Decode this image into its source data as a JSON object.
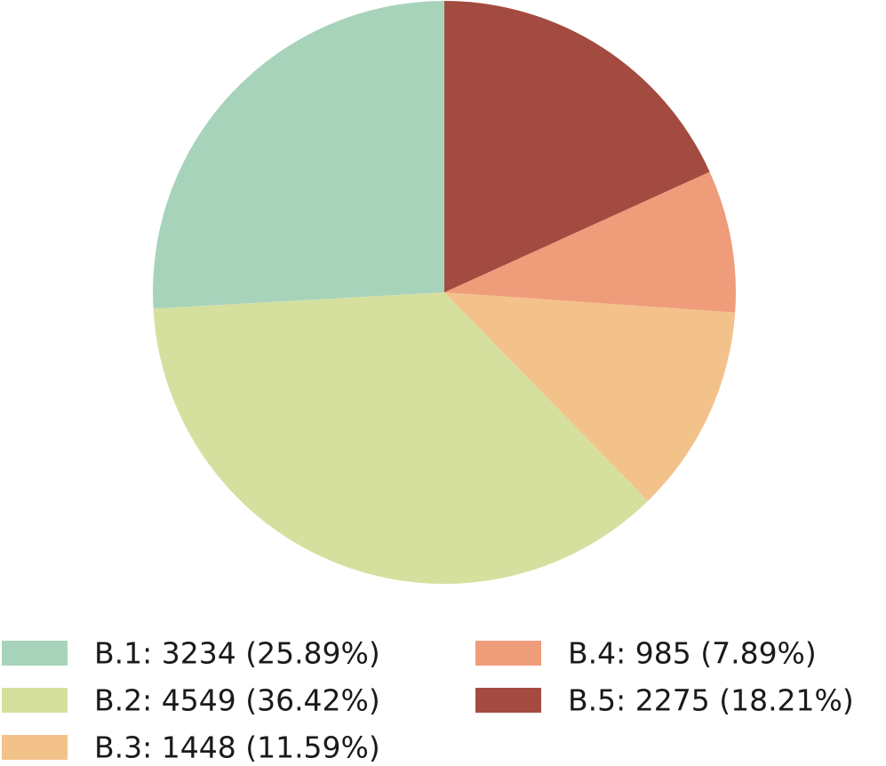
{
  "chart_data": {
    "type": "pie",
    "start_angle_deg": 90,
    "direction": "counterclockwise",
    "slices": [
      {
        "label": "B.1: 3234 (25.89%)",
        "name": "B.1",
        "value": 3234,
        "percent": 25.89,
        "color": "#a8d3bb"
      },
      {
        "label": "B.2: 4549 (36.42%)",
        "name": "B.2",
        "value": 4549,
        "percent": 36.42,
        "color": "#d5e09f"
      },
      {
        "label": "B.3: 1448 (11.59%)",
        "name": "B.3",
        "value": 1448,
        "percent": 11.59,
        "color": "#f3c28b"
      },
      {
        "label": "B.4: 985 (7.89%)",
        "name": "B.4",
        "value": 985,
        "percent": 7.89,
        "color": "#ef9c7b"
      },
      {
        "label": "B.5: 2275 (18.21%)",
        "name": "B.5",
        "value": 2275,
        "percent": 18.21,
        "color": "#a34b40"
      }
    ],
    "legend": {
      "placement": "bottom",
      "columns": 2
    }
  }
}
